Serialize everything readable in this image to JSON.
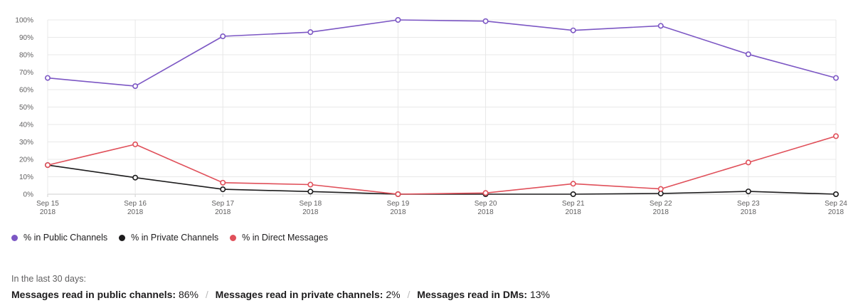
{
  "chart_data": {
    "type": "line",
    "x": [
      "Sep 15 2018",
      "Sep 16 2018",
      "Sep 17 2018",
      "Sep 18 2018",
      "Sep 19 2018",
      "Sep 20 2018",
      "Sep 21 2018",
      "Sep 22 2018",
      "Sep 23 2018",
      "Sep 24 2018"
    ],
    "x_tick_lines": [
      [
        "Sep 15",
        "2018"
      ],
      [
        "Sep 16",
        "2018"
      ],
      [
        "Sep 17",
        "2018"
      ],
      [
        "Sep 18",
        "2018"
      ],
      [
        "Sep 19",
        "2018"
      ],
      [
        "Sep 20",
        "2018"
      ],
      [
        "Sep 21",
        "2018"
      ],
      [
        "Sep 22",
        "2018"
      ],
      [
        "Sep 23",
        "2018"
      ],
      [
        "Sep 24",
        "2018"
      ]
    ],
    "ylim": [
      0,
      100
    ],
    "y_ticks": [
      0,
      10,
      20,
      30,
      40,
      50,
      60,
      70,
      80,
      90,
      100
    ],
    "y_tick_labels": [
      "0%",
      "10%",
      "20%",
      "30%",
      "40%",
      "50%",
      "60%",
      "70%",
      "80%",
      "90%",
      "100%"
    ],
    "grid": true,
    "series": [
      {
        "name": "% in Public Channels",
        "color": "#7c57c4",
        "values": [
          66.7,
          62,
          90.6,
          93,
          100,
          99.3,
          94,
          96.6,
          80.3,
          66.7
        ]
      },
      {
        "name": "% in Private Channels",
        "color": "#1d1c1d",
        "values": [
          16.7,
          9.5,
          2.8,
          1.5,
          0,
          0,
          0,
          0.4,
          1.6,
          0
        ]
      },
      {
        "name": "% in Direct Messages",
        "color": "#e0505a",
        "values": [
          16.7,
          28.6,
          6.6,
          5.5,
          0,
          0.7,
          6,
          3,
          18.2,
          33.3
        ]
      }
    ],
    "legend_position": "bottom-left"
  },
  "summary": {
    "caption": "In the last 30 days:",
    "public_label": "Messages read in public channels:",
    "public_value": " 86%",
    "private_label": "Messages read in private channels:",
    "private_value": " 2%",
    "dm_label": "Messages read in DMs:",
    "dm_value": " 13%",
    "separator": "/"
  }
}
